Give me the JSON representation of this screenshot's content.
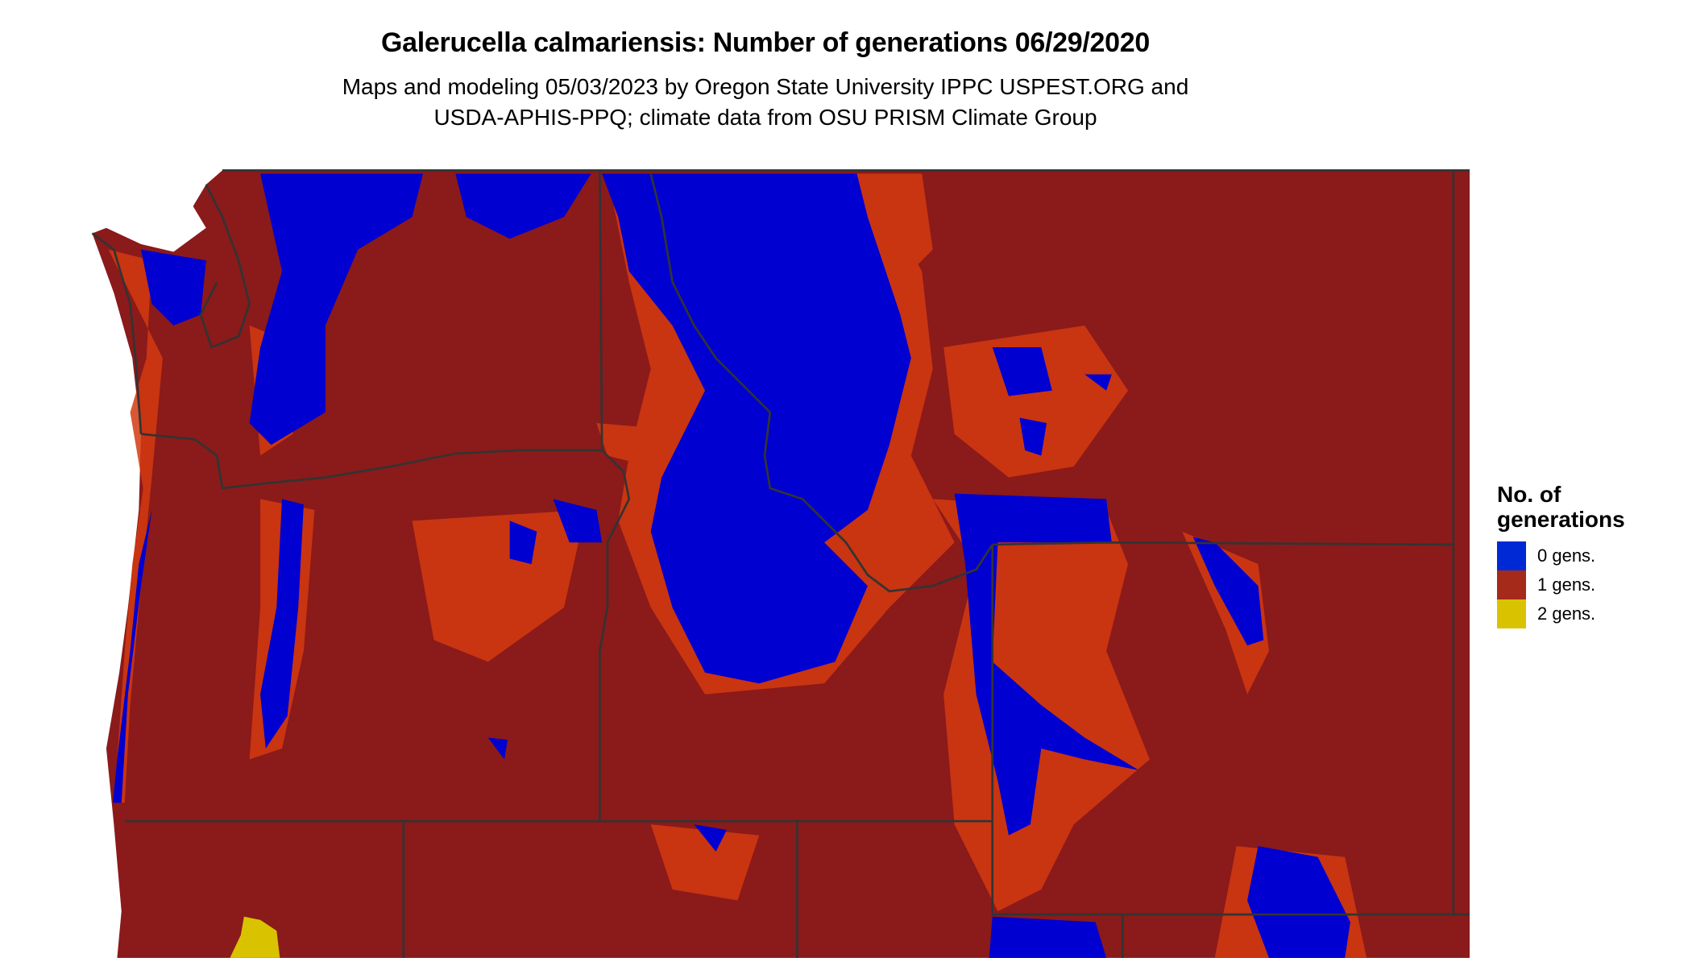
{
  "title": "Galerucella calmariensis: Number of generations 06/29/2020",
  "subtitle_line1": "Maps and modeling 05/03/2023 by Oregon State University IPPC USPEST.ORG and",
  "subtitle_line2": "USDA-APHIS-PPQ; climate data from OSU PRISM Climate Group",
  "legend": {
    "title_line1": "No. of",
    "title_line2": "generations",
    "items": [
      {
        "label": "0 gens.",
        "color": "#0029d6"
      },
      {
        "label": "1 gens.",
        "color": "#a52a1a"
      },
      {
        "label": "2 gens.",
        "color": "#d9c300"
      }
    ]
  },
  "colors": {
    "zero_gens": "#0000d0",
    "one_gen": "#8b1a1a",
    "transition": "#d43a10",
    "two_gens": "#d9c300",
    "borders": "#333333"
  }
}
